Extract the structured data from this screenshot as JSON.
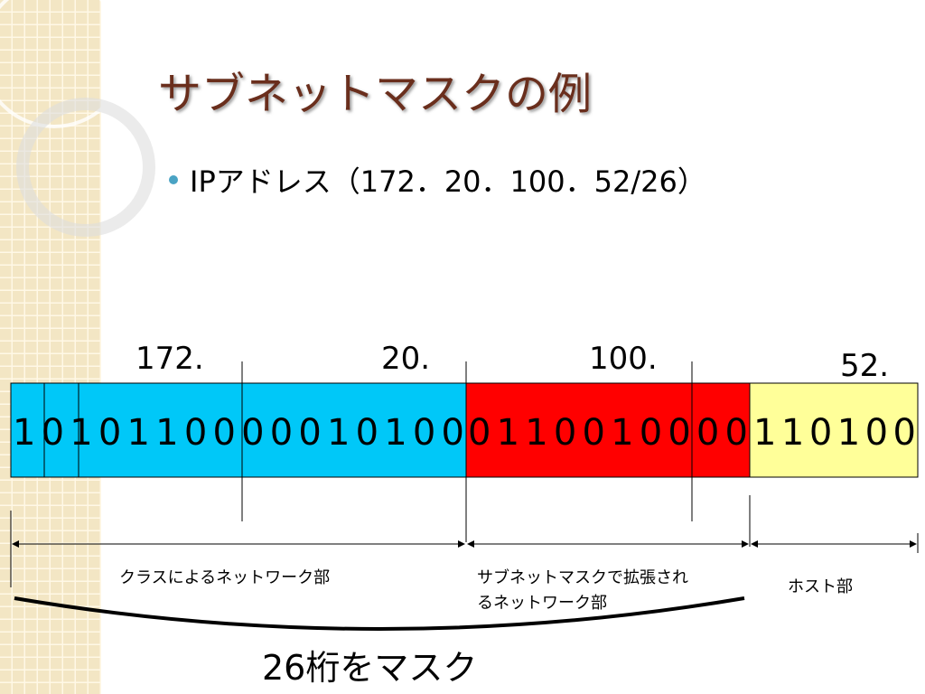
{
  "header": {
    "title": "サブネットマスクの例"
  },
  "bullet": "IPアドレス（172．20．100．52/26）",
  "octets": [
    "172.",
    "20.",
    "100.",
    "52."
  ],
  "bits": {
    "network": "1010110000010100",
    "subnet": "0110010000",
    "host": "110100"
  },
  "sections": {
    "network": "クラスによるネットワーク部",
    "subnet": [
      "サブネットマスクで拡張され",
      "るネットワーク部"
    ],
    "host": "ホスト部"
  },
  "mask_label": "26桁をマスク"
}
